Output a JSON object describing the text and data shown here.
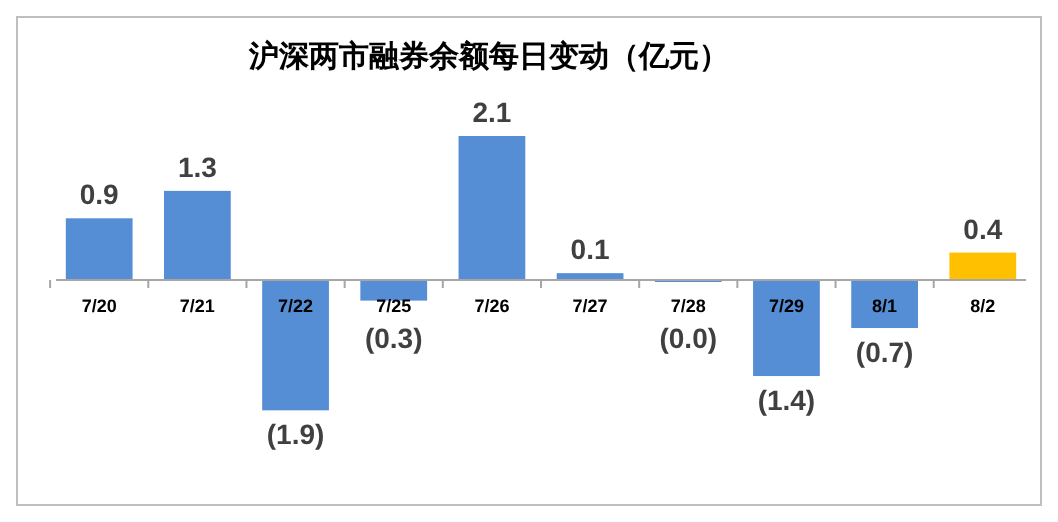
{
  "chart_data": {
    "type": "bar",
    "title": "沪深两市融券余额每日变动（亿元）",
    "categories": [
      "7/20",
      "7/21",
      "7/22",
      "7/25",
      "7/26",
      "7/27",
      "7/28",
      "7/29",
      "8/1",
      "8/2"
    ],
    "values": [
      0.9,
      1.3,
      -1.9,
      -0.3,
      2.1,
      0.1,
      -0.02,
      -1.4,
      -0.7,
      0.4
    ],
    "value_labels": [
      "0.9",
      "1.3",
      "(1.9)",
      "(0.3)",
      "2.1",
      "0.1",
      "(0.0)",
      "(1.4)",
      "(0.7)",
      "0.4"
    ],
    "colors": [
      "#558ed5",
      "#558ed5",
      "#558ed5",
      "#558ed5",
      "#558ed5",
      "#558ed5",
      "#558ed5",
      "#558ed5",
      "#558ed5",
      "#ffc000"
    ]
  }
}
